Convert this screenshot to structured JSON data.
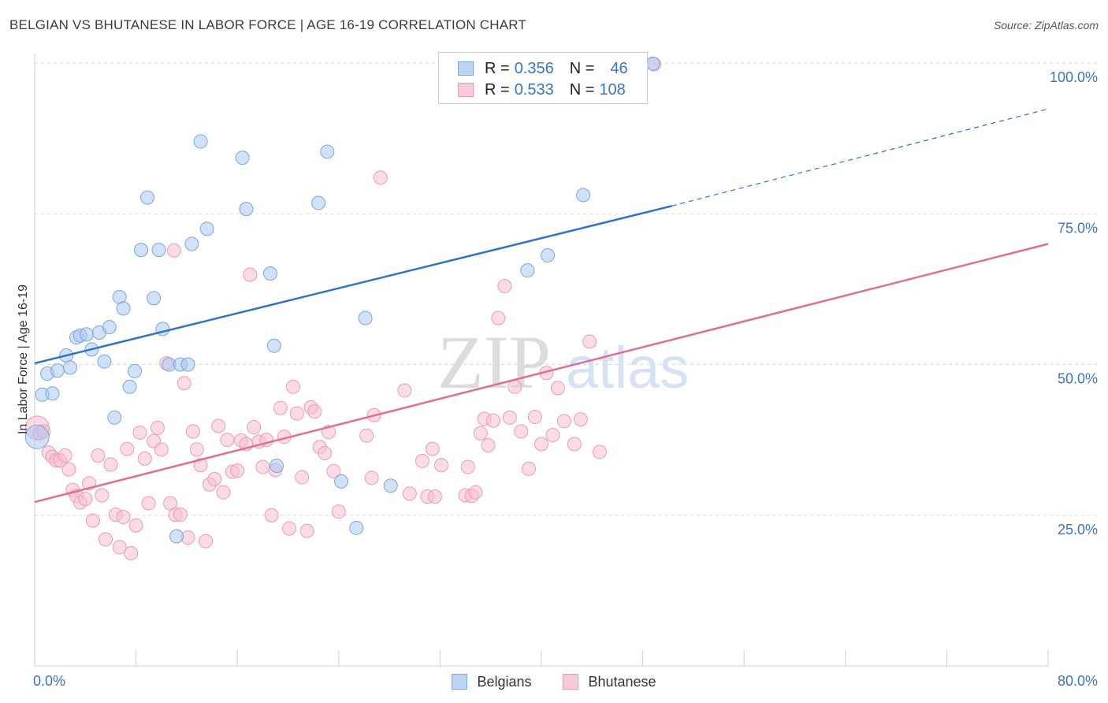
{
  "header": {
    "title": "BELGIAN VS BHUTANESE IN LABOR FORCE | AGE 16-19 CORRELATION CHART",
    "source": "Source: ZipAtlas.com"
  },
  "legend": {
    "series": [
      {
        "r_label": "R = ",
        "r_value": "0.356",
        "n_label": "N = ",
        "n_value": "46"
      },
      {
        "r_label": "R = ",
        "r_value": "0.533",
        "n_label": "N = ",
        "n_value": "108"
      }
    ]
  },
  "watermark": {
    "zip": "ZIP",
    "atlas": "atlas"
  },
  "colors": {
    "belgian_fill": "#a9c8f2",
    "belgian_stroke": "#7ba6e0",
    "belgian_line": "#2f72c9",
    "bhutanese_fill": "#f7bfd0",
    "bhutanese_stroke": "#ee9ab5",
    "bhutanese_line": "#e06d96",
    "tick_label": "#3a74c4",
    "grid": "#d9d9d9"
  },
  "chart_data": {
    "type": "scatter",
    "title": "BELGIAN VS BHUTANESE IN LABOR FORCE | AGE 16-19 CORRELATION CHART",
    "xlabel": "",
    "ylabel": "In Labor Force | Age 16-19",
    "xlim": [
      0,
      80
    ],
    "ylim": [
      0,
      100
    ],
    "x_tick_labels": [
      "0.0%",
      "80.0%"
    ],
    "y_ticks": [
      25,
      50,
      75,
      100
    ],
    "y_tick_labels": [
      "25.0%",
      "50.0%",
      "75.0%",
      "100.0%"
    ],
    "grid": true,
    "legend_position": "top-center",
    "series": [
      {
        "name": "Belgians",
        "r": 0.356,
        "n": 46,
        "trend": {
          "x0": 0,
          "y0": 50.2,
          "x1": 50.3,
          "y1": 76.3,
          "dashed_to_x": 80,
          "dashed_to_y": 92.4
        },
        "points": [
          [
            0.2,
            38.0
          ],
          [
            0.6,
            45.0
          ],
          [
            1.0,
            48.5
          ],
          [
            1.4,
            45.2
          ],
          [
            1.8,
            49.0
          ],
          [
            2.5,
            51.5
          ],
          [
            2.8,
            49.5
          ],
          [
            3.3,
            54.5
          ],
          [
            3.6,
            54.8
          ],
          [
            4.1,
            55.0
          ],
          [
            4.5,
            52.5
          ],
          [
            5.1,
            55.3
          ],
          [
            5.5,
            50.5
          ],
          [
            5.9,
            56.2
          ],
          [
            6.3,
            41.2
          ],
          [
            6.7,
            61.2
          ],
          [
            7.0,
            59.3
          ],
          [
            7.5,
            46.3
          ],
          [
            7.9,
            48.9
          ],
          [
            8.4,
            69.0
          ],
          [
            8.9,
            77.7
          ],
          [
            9.4,
            61.0
          ],
          [
            9.8,
            69.0
          ],
          [
            10.1,
            55.9
          ],
          [
            10.6,
            50.0
          ],
          [
            11.2,
            21.5
          ],
          [
            11.5,
            50.0
          ],
          [
            12.1,
            50.0
          ],
          [
            12.4,
            70.0
          ],
          [
            13.1,
            87.0
          ],
          [
            13.6,
            72.5
          ],
          [
            16.4,
            84.3
          ],
          [
            16.7,
            75.8
          ],
          [
            18.6,
            65.1
          ],
          [
            18.9,
            53.1
          ],
          [
            19.1,
            33.2
          ],
          [
            22.4,
            76.8
          ],
          [
            23.1,
            85.3
          ],
          [
            24.2,
            30.6
          ],
          [
            25.4,
            22.9
          ],
          [
            26.1,
            57.7
          ],
          [
            28.1,
            29.9
          ],
          [
            38.9,
            65.6
          ],
          [
            40.5,
            68.1
          ],
          [
            43.3,
            78.1
          ],
          [
            48.8,
            99.9
          ]
        ]
      },
      {
        "name": "Bhutanese",
        "r": 0.533,
        "n": 108,
        "trend": {
          "x0": 0,
          "y0": 27.2,
          "x1": 80,
          "y1": 70.0
        },
        "points": [
          [
            0.2,
            39.5
          ],
          [
            0.4,
            38.6
          ],
          [
            0.7,
            38.9
          ],
          [
            1.1,
            35.4
          ],
          [
            1.4,
            34.7
          ],
          [
            1.7,
            34.1
          ],
          [
            2.0,
            34.1
          ],
          [
            2.4,
            34.9
          ],
          [
            2.7,
            32.6
          ],
          [
            3.0,
            29.2
          ],
          [
            3.3,
            28.2
          ],
          [
            3.6,
            27.1
          ],
          [
            4.0,
            27.7
          ],
          [
            4.3,
            30.3
          ],
          [
            4.6,
            24.1
          ],
          [
            5.0,
            34.9
          ],
          [
            5.3,
            28.3
          ],
          [
            5.6,
            21.0
          ],
          [
            6.0,
            33.4
          ],
          [
            6.4,
            25.1
          ],
          [
            6.7,
            19.7
          ],
          [
            7.0,
            24.7
          ],
          [
            7.3,
            36.0
          ],
          [
            7.6,
            18.7
          ],
          [
            8.0,
            23.3
          ],
          [
            8.3,
            38.7
          ],
          [
            8.7,
            34.4
          ],
          [
            9.0,
            27.0
          ],
          [
            9.4,
            37.3
          ],
          [
            9.7,
            39.5
          ],
          [
            10.0,
            35.9
          ],
          [
            10.4,
            50.2
          ],
          [
            10.7,
            27.0
          ],
          [
            11.0,
            68.9
          ],
          [
            11.1,
            25.1
          ],
          [
            11.5,
            25.1
          ],
          [
            11.8,
            46.9
          ],
          [
            12.1,
            21.3
          ],
          [
            12.5,
            38.9
          ],
          [
            12.8,
            35.9
          ],
          [
            13.1,
            33.3
          ],
          [
            13.5,
            20.7
          ],
          [
            13.8,
            30.1
          ],
          [
            14.2,
            31.0
          ],
          [
            14.5,
            39.8
          ],
          [
            14.9,
            28.8
          ],
          [
            15.2,
            37.5
          ],
          [
            15.6,
            32.2
          ],
          [
            16.0,
            32.4
          ],
          [
            16.3,
            37.4
          ],
          [
            16.7,
            36.8
          ],
          [
            17.0,
            64.9
          ],
          [
            17.3,
            39.6
          ],
          [
            17.7,
            37.2
          ],
          [
            18.0,
            33.0
          ],
          [
            18.3,
            37.5
          ],
          [
            18.7,
            25.0
          ],
          [
            19.0,
            32.5
          ],
          [
            19.4,
            42.8
          ],
          [
            19.7,
            38.0
          ],
          [
            20.1,
            22.8
          ],
          [
            20.4,
            46.3
          ],
          [
            20.7,
            41.9
          ],
          [
            21.1,
            31.3
          ],
          [
            21.5,
            22.4
          ],
          [
            21.8,
            42.9
          ],
          [
            22.1,
            42.2
          ],
          [
            22.5,
            36.3
          ],
          [
            22.9,
            35.3
          ],
          [
            23.2,
            38.8
          ],
          [
            23.6,
            32.3
          ],
          [
            24.0,
            25.6
          ],
          [
            26.2,
            38.2
          ],
          [
            26.6,
            31.2
          ],
          [
            26.8,
            41.6
          ],
          [
            27.3,
            81.0
          ],
          [
            29.2,
            45.7
          ],
          [
            29.6,
            28.6
          ],
          [
            30.6,
            34.0
          ],
          [
            31.0,
            28.1
          ],
          [
            31.4,
            36.0
          ],
          [
            31.6,
            28.1
          ],
          [
            32.1,
            33.3
          ],
          [
            34.0,
            28.3
          ],
          [
            34.2,
            33.0
          ],
          [
            34.5,
            28.2
          ],
          [
            34.8,
            28.8
          ],
          [
            35.2,
            38.6
          ],
          [
            35.5,
            41.0
          ],
          [
            35.8,
            36.6
          ],
          [
            36.2,
            40.7
          ],
          [
            36.6,
            57.7
          ],
          [
            37.1,
            63.0
          ],
          [
            37.5,
            41.2
          ],
          [
            37.9,
            46.3
          ],
          [
            38.4,
            38.9
          ],
          [
            39.0,
            32.7
          ],
          [
            39.5,
            41.3
          ],
          [
            40.0,
            36.8
          ],
          [
            40.4,
            48.6
          ],
          [
            40.9,
            38.3
          ],
          [
            41.3,
            46.1
          ],
          [
            41.8,
            40.6
          ],
          [
            42.6,
            36.8
          ],
          [
            43.1,
            40.9
          ],
          [
            43.8,
            53.8
          ],
          [
            44.6,
            35.5
          ],
          [
            48.9,
            99.8
          ]
        ]
      }
    ]
  }
}
